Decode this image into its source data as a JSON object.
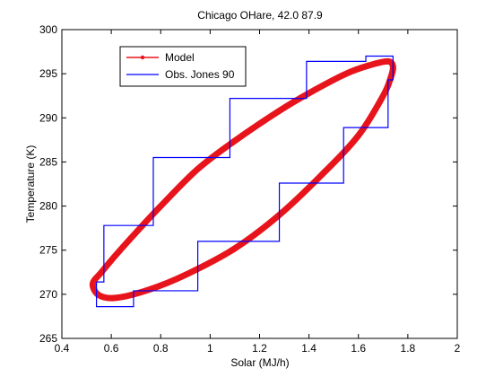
{
  "chart_data": {
    "type": "line",
    "title": "Chicago OHare, 42.0 87.9",
    "xlabel": "Solar (MJ/h)",
    "ylabel": "Temperature (K)",
    "xlim": [
      0.4,
      2.0
    ],
    "ylim": [
      265,
      300
    ],
    "xticks": [
      "0.4",
      "0.6",
      "0.8",
      "1",
      "1.2",
      "1.4",
      "1.6",
      "1.8",
      "2"
    ],
    "yticks": [
      "265",
      "270",
      "275",
      "280",
      "285",
      "290",
      "295",
      "300"
    ],
    "grid": false,
    "legend_position": "top-left",
    "series": [
      {
        "name": "Model",
        "color": "#e8141c",
        "marker": "dot",
        "style": "thick closed loop",
        "x": [
          0.525,
          0.56,
          0.62,
          0.7,
          0.8,
          0.95,
          1.1,
          1.28,
          1.4,
          1.55,
          1.65,
          1.72,
          1.74,
          1.73,
          1.7,
          1.6,
          1.45,
          1.28,
          1.1,
          0.9,
          0.75,
          0.62,
          0.55,
          0.525
        ],
        "y": [
          271.2,
          272.5,
          274.5,
          277.0,
          280.0,
          284.2,
          287.4,
          290.8,
          292.8,
          295.0,
          296.0,
          296.4,
          295.8,
          294.5,
          292.5,
          288.0,
          283.5,
          279.0,
          275.2,
          272.2,
          270.5,
          269.6,
          269.9,
          271.2
        ]
      },
      {
        "name": "Obs. Jones 90",
        "color": "#0000ff",
        "style": "step",
        "x": [
          0.54,
          0.57,
          0.57,
          0.77,
          0.77,
          1.08,
          1.08,
          1.39,
          1.39,
          1.63,
          1.63,
          1.74,
          1.74,
          1.72,
          1.72,
          1.54,
          1.54,
          1.28,
          1.28,
          0.95,
          0.95,
          0.69,
          0.69,
          0.54,
          0.54
        ],
        "y": [
          271.4,
          271.4,
          277.8,
          277.8,
          285.5,
          285.5,
          292.2,
          292.2,
          296.4,
          296.4,
          297.0,
          297.0,
          294.3,
          294.3,
          288.9,
          288.9,
          282.6,
          282.6,
          276.0,
          276.0,
          270.4,
          270.4,
          268.6,
          268.6,
          271.4
        ]
      }
    ]
  }
}
